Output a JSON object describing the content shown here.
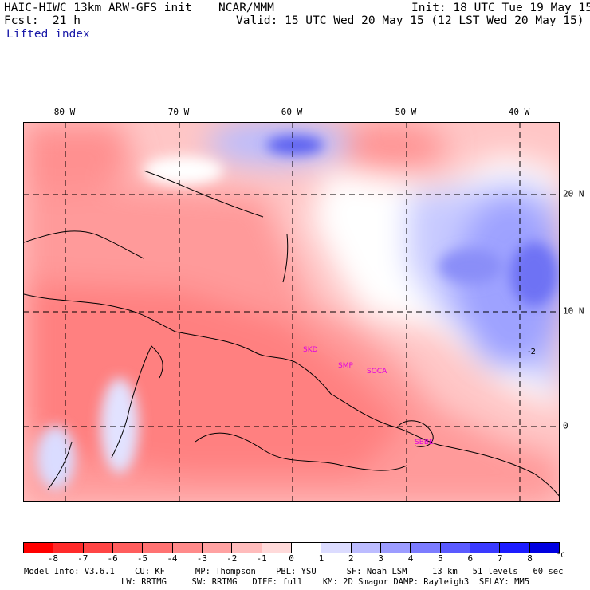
{
  "header": {
    "model_title": "HAIC-HIWC 13km ARW-GFS init",
    "org": "NCAR/MMM",
    "init": "Init: 18 UTC Tue 19 May 15",
    "fcst_label": "Fcst:",
    "fcst_value": "21 h",
    "valid": "Valid: 15 UTC Wed 20 May 15 (12 LST Wed 20 May 15)",
    "field": "Lifted index"
  },
  "map": {
    "lon_labels": [
      "80 W",
      "70 W",
      "60 W",
      "50 W",
      "40 W"
    ],
    "lat_labels": [
      "20 N",
      "10 N",
      "0"
    ],
    "stations": [
      "SKD",
      "SMP",
      "SOCA",
      "SBBE"
    ],
    "contour_label": "-2",
    "colors": {
      "coast": "#000000",
      "station": "#e000e0",
      "grid": "#000000"
    }
  },
  "colorbar": {
    "ticks": [
      "-8",
      "-7",
      "-6",
      "-5",
      "-4",
      "-3",
      "-2",
      "-1",
      "0",
      "1",
      "2",
      "3",
      "4",
      "5",
      "6",
      "7",
      "8"
    ],
    "unit": "°C",
    "colors": [
      "#ff0000",
      "#ff2a2a",
      "#ff4545",
      "#ff5d5d",
      "#ff7272",
      "#ff8a8a",
      "#ffa2a2",
      "#ffbcbc",
      "#ffdada",
      "#ffffff",
      "#dcdcff",
      "#bcbcff",
      "#9c9cff",
      "#7c7cff",
      "#5a5aff",
      "#3a3aff",
      "#1c1cff",
      "#0000e0"
    ]
  },
  "footer": {
    "line1": "Model Info: V3.6.1    CU: KF      MP: Thompson    PBL: YSU      SF: Noah LSM     13 km   51 levels   60 sec",
    "line2": "LW: RRTMG     SW: RRTMG   DIFF: full    KM: 2D Smagor DAMP: Rayleigh3  SFLAY: MM5"
  }
}
